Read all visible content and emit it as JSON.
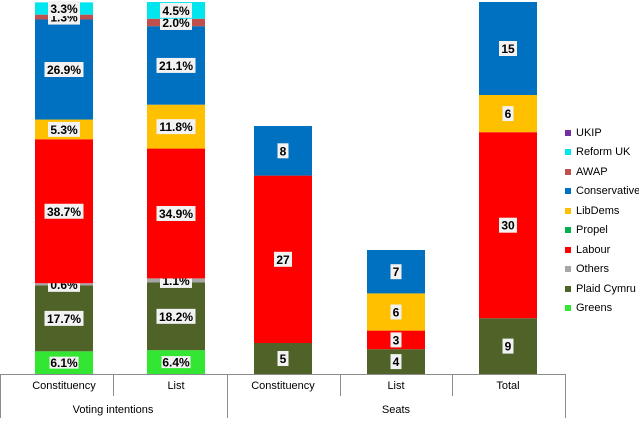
{
  "chart_data": {
    "type": "stacked-bar",
    "parties": [
      {
        "name": "Greens",
        "color": "#33e633"
      },
      {
        "name": "Plaid Cymru",
        "color": "#4f6228"
      },
      {
        "name": "Others",
        "color": "#a6a6a6"
      },
      {
        "name": "Labour",
        "color": "#ff0000"
      },
      {
        "name": "Propel",
        "color": "#00b050"
      },
      {
        "name": "LibDems",
        "color": "#ffc000"
      },
      {
        "name": "Conservatives",
        "color": "#0070c0"
      },
      {
        "name": "AWAP",
        "color": "#c0504d"
      },
      {
        "name": "Reform UK",
        "color": "#00e5ee"
      },
      {
        "name": "UKIP",
        "color": "#7030a0"
      }
    ],
    "legend_order": [
      "UKIP",
      "Reform UK",
      "AWAP",
      "Conservatives",
      "LibDems",
      "Propel",
      "Labour",
      "Others",
      "Plaid Cymru",
      "Greens"
    ],
    "groups": [
      {
        "label": "Voting intentions",
        "categories": [
          "Constituency",
          "List"
        ]
      },
      {
        "label": "Seats",
        "categories": [
          "Constituency",
          "List",
          "Total"
        ]
      }
    ],
    "bars": [
      {
        "category": "Constituency",
        "group": "Voting intentions",
        "scale": "percent",
        "segments": [
          {
            "party": "Greens",
            "value": 6.1,
            "label": "6.1%"
          },
          {
            "party": "Plaid Cymru",
            "value": 17.7,
            "label": "17.7%"
          },
          {
            "party": "Others",
            "value": 0.6,
            "label": "0.6%"
          },
          {
            "party": "Labour",
            "value": 38.7,
            "label": "38.7%"
          },
          {
            "party": "LibDems",
            "value": 5.3,
            "label": "5.3%"
          },
          {
            "party": "Conservatives",
            "value": 26.9,
            "label": "26.9%"
          },
          {
            "party": "AWAP",
            "value": 1.3,
            "label": "1.3%"
          },
          {
            "party": "Reform UK",
            "value": 3.3,
            "label": "3.3%"
          }
        ]
      },
      {
        "category": "List",
        "group": "Voting intentions",
        "scale": "percent",
        "segments": [
          {
            "party": "Greens",
            "value": 6.4,
            "label": "6.4%"
          },
          {
            "party": "Plaid Cymru",
            "value": 18.2,
            "label": "18.2%"
          },
          {
            "party": "Others",
            "value": 1.1,
            "label": "1.1%"
          },
          {
            "party": "Labour",
            "value": 34.9,
            "label": "34.9%"
          },
          {
            "party": "LibDems",
            "value": 11.8,
            "label": "11.8%"
          },
          {
            "party": "Conservatives",
            "value": 21.1,
            "label": "21.1%"
          },
          {
            "party": "AWAP",
            "value": 2.0,
            "label": "2.0%"
          },
          {
            "party": "Reform UK",
            "value": 4.5,
            "label": "4.5%"
          }
        ]
      },
      {
        "category": "Constituency",
        "group": "Seats",
        "scale": "seats",
        "segments": [
          {
            "party": "Plaid Cymru",
            "value": 5,
            "label": "5"
          },
          {
            "party": "Labour",
            "value": 27,
            "label": "27"
          },
          {
            "party": "Conservatives",
            "value": 8,
            "label": "8"
          }
        ]
      },
      {
        "category": "List",
        "group": "Seats",
        "scale": "seats",
        "segments": [
          {
            "party": "Plaid Cymru",
            "value": 4,
            "label": "4"
          },
          {
            "party": "Labour",
            "value": 3,
            "label": "3"
          },
          {
            "party": "LibDems",
            "value": 6,
            "label": "6"
          },
          {
            "party": "Conservatives",
            "value": 7,
            "label": "7"
          }
        ]
      },
      {
        "category": "Total",
        "group": "Seats",
        "scale": "seats",
        "segments": [
          {
            "party": "Plaid Cymru",
            "value": 9,
            "label": "9"
          },
          {
            "party": "Labour",
            "value": 30,
            "label": "30"
          },
          {
            "party": "LibDems",
            "value": 6,
            "label": "6"
          },
          {
            "party": "Conservatives",
            "value": 15,
            "label": "15"
          }
        ]
      }
    ],
    "scales": {
      "percent": [
        0,
        100
      ],
      "seats": [
        0,
        60
      ]
    },
    "legend_position": "right"
  }
}
